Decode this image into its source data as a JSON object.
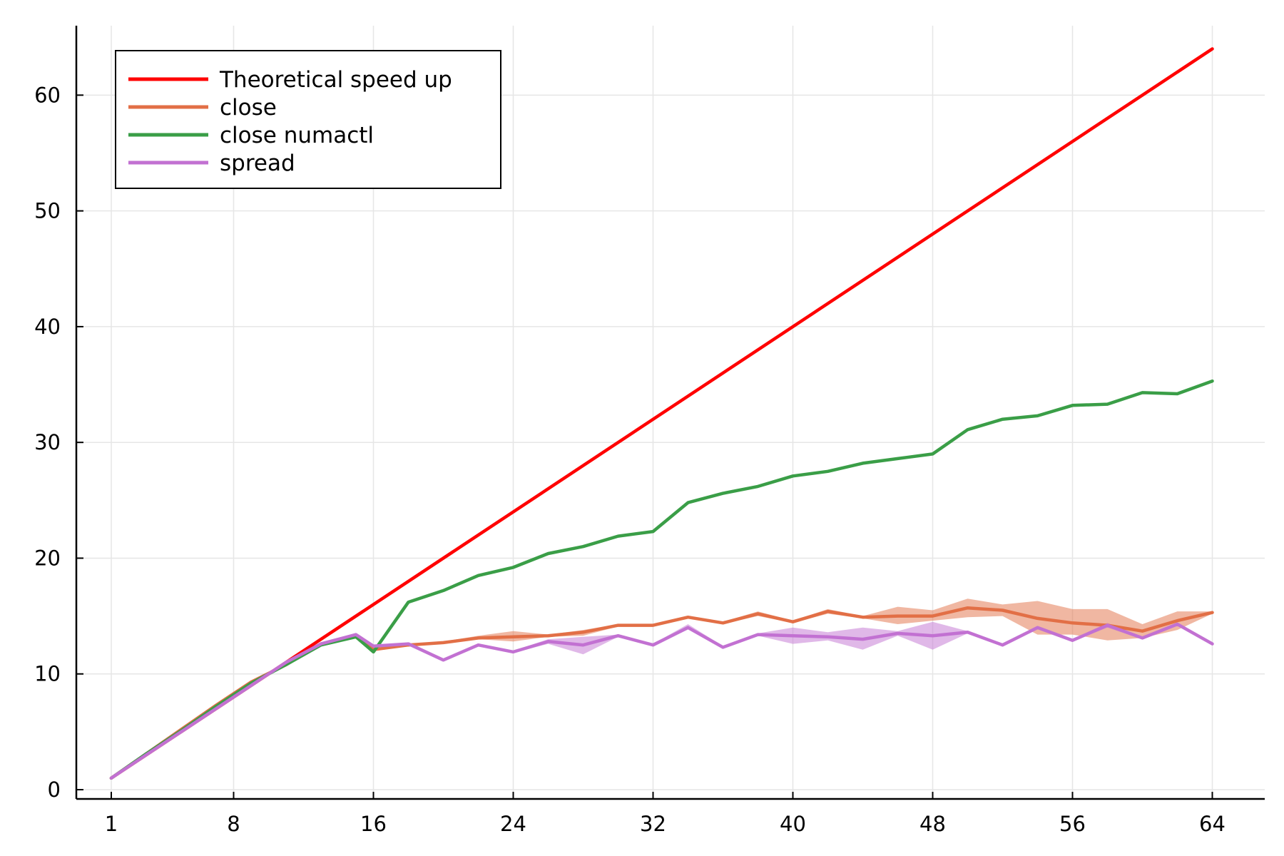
{
  "chart_data": {
    "type": "line",
    "title": "",
    "xlabel": "",
    "ylabel": "",
    "xlim": [
      -1,
      67
    ],
    "ylim": [
      -0.8,
      66
    ],
    "xticks": [
      1,
      8,
      16,
      24,
      32,
      40,
      48,
      56,
      64
    ],
    "yticks": [
      0,
      10,
      20,
      30,
      40,
      50,
      60
    ],
    "grid": true,
    "legend_position": "top-left",
    "series": [
      {
        "name": "Theoretical speed up",
        "color": "#ff0000",
        "x": [
          1,
          64
        ],
        "y": [
          1,
          64
        ],
        "band": null
      },
      {
        "name": "close",
        "color": "#e26f46",
        "x": [
          1,
          3,
          5,
          7,
          9,
          11,
          13,
          15,
          16,
          18,
          20,
          22,
          24,
          26,
          28,
          30,
          32,
          34,
          36,
          38,
          40,
          42,
          44,
          46,
          48,
          50,
          52,
          54,
          56,
          58,
          60,
          62,
          64
        ],
        "y": [
          1,
          3.1,
          5.2,
          7.3,
          9.3,
          10.8,
          12.6,
          13.3,
          12.1,
          12.5,
          12.7,
          13.1,
          13.2,
          13.3,
          13.6,
          14.2,
          14.2,
          14.9,
          14.4,
          15.2,
          14.5,
          15.4,
          14.9,
          15.0,
          15.0,
          15.7,
          15.5,
          14.8,
          14.4,
          14.2,
          13.7,
          14.6,
          15.3
        ],
        "band": {
          "low": [
            1,
            3.1,
            5.2,
            7.3,
            9.3,
            10.8,
            12.6,
            13.3,
            12.1,
            12.4,
            12.6,
            13.0,
            12.8,
            13.2,
            13.3,
            14.1,
            14.1,
            14.8,
            14.3,
            15.0,
            14.4,
            15.2,
            14.8,
            14.3,
            14.6,
            14.9,
            15.0,
            13.4,
            13.4,
            12.9,
            13.1,
            13.8,
            15.2
          ],
          "high": [
            1,
            3.1,
            5.2,
            7.3,
            9.3,
            10.8,
            12.6,
            13.3,
            12.1,
            12.6,
            12.8,
            13.3,
            13.7,
            13.4,
            13.8,
            14.3,
            14.3,
            15.0,
            14.5,
            15.4,
            14.6,
            15.6,
            15.0,
            15.8,
            15.5,
            16.5,
            16.0,
            16.3,
            15.6,
            15.6,
            14.3,
            15.4,
            15.4
          ]
        }
      },
      {
        "name": "close numactl",
        "color": "#3a9e47",
        "x": [
          1,
          3,
          5,
          7,
          9,
          11,
          13,
          15,
          16,
          18,
          20,
          22,
          24,
          26,
          28,
          30,
          32,
          34,
          36,
          38,
          40,
          42,
          44,
          46,
          48,
          50,
          52,
          54,
          56,
          58,
          60,
          62,
          64
        ],
        "y": [
          1,
          3.1,
          5.1,
          7.2,
          9.2,
          10.8,
          12.5,
          13.2,
          11.9,
          16.2,
          17.2,
          18.5,
          19.2,
          20.4,
          21.0,
          21.9,
          22.3,
          24.8,
          25.6,
          26.2,
          27.1,
          27.5,
          28.2,
          28.6,
          29.0,
          31.1,
          32.0,
          32.3,
          33.2,
          33.3,
          34.3,
          34.2,
          35.3
        ],
        "band": null
      },
      {
        "name": "spread",
        "color": "#c271d2",
        "x": [
          1,
          3,
          5,
          7,
          9,
          11,
          13,
          15,
          16,
          18,
          20,
          22,
          24,
          26,
          28,
          30,
          32,
          34,
          36,
          38,
          40,
          42,
          44,
          46,
          48,
          50,
          52,
          54,
          56,
          58,
          60,
          62,
          64
        ],
        "y": [
          1,
          3.0,
          5.0,
          7.0,
          9.0,
          11.0,
          12.6,
          13.4,
          12.4,
          12.6,
          11.2,
          12.5,
          11.9,
          12.8,
          12.5,
          13.3,
          12.5,
          14.0,
          12.3,
          13.4,
          13.3,
          13.2,
          13.0,
          13.5,
          13.3,
          13.6,
          12.5,
          14.0,
          12.9,
          14.2,
          13.1,
          14.3,
          12.6
        ],
        "band": {
          "low": [
            1,
            3.0,
            5.0,
            7.0,
            9.0,
            11.0,
            12.6,
            13.4,
            12.3,
            12.5,
            11.1,
            12.4,
            11.8,
            12.6,
            11.7,
            13.2,
            12.4,
            13.9,
            12.2,
            13.3,
            12.6,
            12.9,
            12.1,
            13.3,
            12.1,
            13.5,
            12.4,
            13.9,
            12.8,
            14.0,
            13.0,
            14.2,
            12.5
          ],
          "high": [
            1,
            3.0,
            5.0,
            7.0,
            9.0,
            11.0,
            12.6,
            13.4,
            12.5,
            12.7,
            11.3,
            12.6,
            12.0,
            13.0,
            13.2,
            13.4,
            12.6,
            14.3,
            12.4,
            13.5,
            14.0,
            13.6,
            14.0,
            13.7,
            14.5,
            13.7,
            12.6,
            14.1,
            13.0,
            14.4,
            13.2,
            14.4,
            12.7
          ]
        }
      }
    ]
  }
}
